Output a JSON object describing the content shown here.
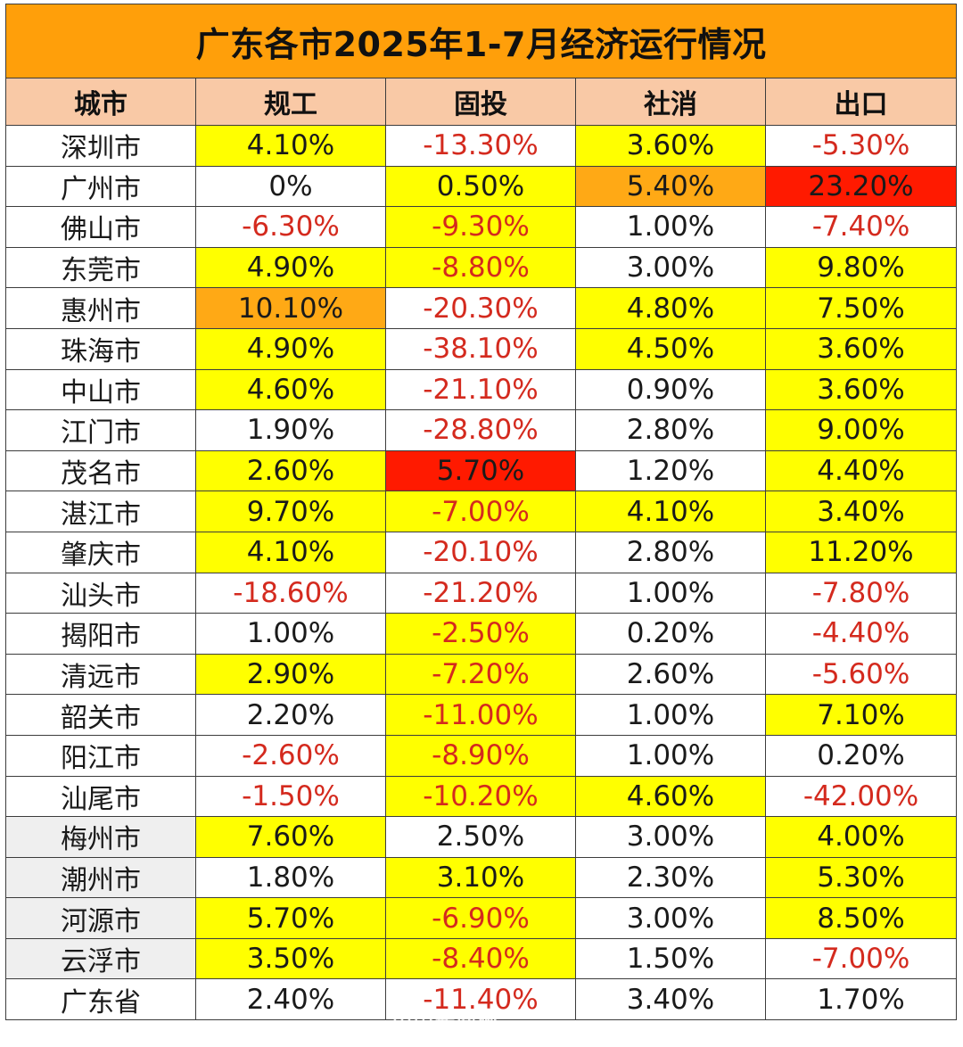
{
  "title": "广东各市2025年1-7月经济运行情况",
  "headers": [
    "城市",
    "规工",
    "固投",
    "社消",
    "出口"
  ],
  "rows": [
    {
      "city": "深圳市",
      "cells": [
        {
          "v": "4.10%",
          "hl": "yellow"
        },
        {
          "v": "-13.30%",
          "hl": ""
        },
        {
          "v": "3.60%",
          "hl": "yellow"
        },
        {
          "v": "-5.30%",
          "hl": ""
        }
      ]
    },
    {
      "city": "广州市",
      "cells": [
        {
          "v": "0%",
          "hl": ""
        },
        {
          "v": "0.50%",
          "hl": "yellow"
        },
        {
          "v": "5.40%",
          "hl": "orange"
        },
        {
          "v": "23.20%",
          "hl": "red"
        }
      ]
    },
    {
      "city": "佛山市",
      "cells": [
        {
          "v": "-6.30%",
          "hl": ""
        },
        {
          "v": "-9.30%",
          "hl": "yellow"
        },
        {
          "v": "1.00%",
          "hl": ""
        },
        {
          "v": "-7.40%",
          "hl": ""
        }
      ]
    },
    {
      "city": "东莞市",
      "cells": [
        {
          "v": "4.90%",
          "hl": "yellow"
        },
        {
          "v": "-8.80%",
          "hl": "yellow"
        },
        {
          "v": "3.00%",
          "hl": ""
        },
        {
          "v": "9.80%",
          "hl": "yellow"
        }
      ]
    },
    {
      "city": "惠州市",
      "cells": [
        {
          "v": "10.10%",
          "hl": "orange"
        },
        {
          "v": "-20.30%",
          "hl": ""
        },
        {
          "v": "4.80%",
          "hl": "yellow"
        },
        {
          "v": "7.50%",
          "hl": "yellow"
        }
      ]
    },
    {
      "city": "珠海市",
      "cells": [
        {
          "v": "4.90%",
          "hl": "yellow"
        },
        {
          "v": "-38.10%",
          "hl": ""
        },
        {
          "v": "4.50%",
          "hl": "yellow"
        },
        {
          "v": "3.60%",
          "hl": "yellow"
        }
      ]
    },
    {
      "city": "中山市",
      "cells": [
        {
          "v": "4.60%",
          "hl": "yellow"
        },
        {
          "v": "-21.10%",
          "hl": ""
        },
        {
          "v": "0.90%",
          "hl": ""
        },
        {
          "v": "3.60%",
          "hl": "yellow"
        }
      ]
    },
    {
      "city": "江门市",
      "cells": [
        {
          "v": "1.90%",
          "hl": ""
        },
        {
          "v": "-28.80%",
          "hl": ""
        },
        {
          "v": "2.80%",
          "hl": ""
        },
        {
          "v": "9.00%",
          "hl": "yellow"
        }
      ]
    },
    {
      "city": "茂名市",
      "cells": [
        {
          "v": "2.60%",
          "hl": "yellow"
        },
        {
          "v": "5.70%",
          "hl": "red"
        },
        {
          "v": "1.20%",
          "hl": ""
        },
        {
          "v": "4.40%",
          "hl": "yellow"
        }
      ]
    },
    {
      "city": "湛江市",
      "cells": [
        {
          "v": "9.70%",
          "hl": "yellow"
        },
        {
          "v": "-7.00%",
          "hl": "yellow"
        },
        {
          "v": "4.10%",
          "hl": "yellow"
        },
        {
          "v": "3.40%",
          "hl": "yellow"
        }
      ]
    },
    {
      "city": "肇庆市",
      "cells": [
        {
          "v": "4.10%",
          "hl": "yellow"
        },
        {
          "v": "-20.10%",
          "hl": ""
        },
        {
          "v": "2.80%",
          "hl": ""
        },
        {
          "v": "11.20%",
          "hl": "yellow"
        }
      ]
    },
    {
      "city": "汕头市",
      "cells": [
        {
          "v": "-18.60%",
          "hl": ""
        },
        {
          "v": "-21.20%",
          "hl": ""
        },
        {
          "v": "1.00%",
          "hl": ""
        },
        {
          "v": "-7.80%",
          "hl": ""
        }
      ]
    },
    {
      "city": "揭阳市",
      "cells": [
        {
          "v": "1.00%",
          "hl": ""
        },
        {
          "v": "-2.50%",
          "hl": "yellow"
        },
        {
          "v": "0.20%",
          "hl": ""
        },
        {
          "v": "-4.40%",
          "hl": ""
        }
      ]
    },
    {
      "city": "清远市",
      "cells": [
        {
          "v": "2.90%",
          "hl": "yellow"
        },
        {
          "v": "-7.20%",
          "hl": "yellow"
        },
        {
          "v": "2.60%",
          "hl": ""
        },
        {
          "v": "-5.60%",
          "hl": ""
        }
      ]
    },
    {
      "city": "韶关市",
      "cells": [
        {
          "v": "2.20%",
          "hl": ""
        },
        {
          "v": "-11.00%",
          "hl": "yellow"
        },
        {
          "v": "1.00%",
          "hl": ""
        },
        {
          "v": "7.10%",
          "hl": "yellow"
        }
      ]
    },
    {
      "city": "阳江市",
      "cells": [
        {
          "v": "-2.60%",
          "hl": ""
        },
        {
          "v": "-8.90%",
          "hl": "yellow"
        },
        {
          "v": "1.00%",
          "hl": ""
        },
        {
          "v": "0.20%",
          "hl": ""
        }
      ]
    },
    {
      "city": "汕尾市",
      "cells": [
        {
          "v": "-1.50%",
          "hl": ""
        },
        {
          "v": "-10.20%",
          "hl": "yellow"
        },
        {
          "v": "4.60%",
          "hl": "yellow"
        },
        {
          "v": "-42.00%",
          "hl": ""
        }
      ]
    },
    {
      "city": "梅州市",
      "shade": true,
      "cells": [
        {
          "v": "7.60%",
          "hl": "yellow"
        },
        {
          "v": "2.50%",
          "hl": ""
        },
        {
          "v": "3.00%",
          "hl": ""
        },
        {
          "v": "4.00%",
          "hl": "yellow"
        }
      ]
    },
    {
      "city": "潮州市",
      "shade": true,
      "cells": [
        {
          "v": "1.80%",
          "hl": ""
        },
        {
          "v": "3.10%",
          "hl": "yellow"
        },
        {
          "v": "2.30%",
          "hl": ""
        },
        {
          "v": "5.30%",
          "hl": "yellow"
        }
      ]
    },
    {
      "city": "河源市",
      "shade": true,
      "cells": [
        {
          "v": "5.70%",
          "hl": "yellow"
        },
        {
          "v": "-6.90%",
          "hl": "yellow"
        },
        {
          "v": "3.00%",
          "hl": ""
        },
        {
          "v": "8.50%",
          "hl": "yellow"
        }
      ]
    },
    {
      "city": "云浮市",
      "shade": true,
      "cells": [
        {
          "v": "3.50%",
          "hl": "yellow"
        },
        {
          "v": "-8.40%",
          "hl": "yellow"
        },
        {
          "v": "1.50%",
          "hl": ""
        },
        {
          "v": "-7.00%",
          "hl": ""
        }
      ]
    },
    {
      "city": "广东省",
      "cells": [
        {
          "v": "2.40%",
          "hl": ""
        },
        {
          "v": "-11.40%",
          "hl": ""
        },
        {
          "v": "3.40%",
          "hl": ""
        },
        {
          "v": "1.70%",
          "hl": ""
        }
      ]
    }
  ],
  "watermark": {
    "main": "中国新闻网",
    "sub": "WWW.GDMM.COM"
  }
}
